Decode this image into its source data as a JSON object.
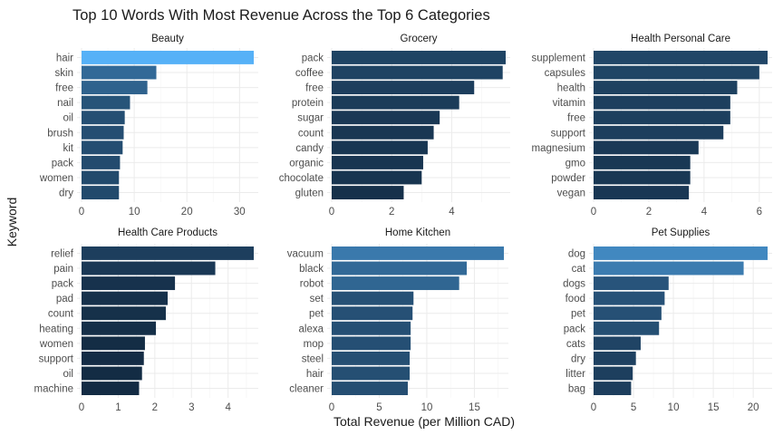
{
  "chart_data": {
    "type": "bar",
    "orientation": "horizontal",
    "title": "Top 10 Words With Most Revenue Across the Top 6 Categories",
    "xlabel": "Total Revenue (per Million CAD)",
    "ylabel": "Keyword",
    "grid": true,
    "legend": "none",
    "color_scale": [
      "#132b43",
      "#56b1f7"
    ],
    "facets": [
      {
        "title": "Beauty",
        "categories": [
          "hair",
          "skin",
          "free",
          "nail",
          "oil",
          "brush",
          "kit",
          "pack",
          "women",
          "dry"
        ],
        "values": [
          32.7,
          14.2,
          12.5,
          9.2,
          8.2,
          8.0,
          7.8,
          7.3,
          7.1,
          7.1
        ],
        "xlim": [
          0,
          32.7
        ],
        "ticks": [
          0,
          10,
          20,
          30
        ]
      },
      {
        "title": "Grocery",
        "categories": [
          "pack",
          "coffee",
          "free",
          "protein",
          "sugar",
          "count",
          "candy",
          "organic",
          "chocolate",
          "gluten"
        ],
        "values": [
          5.8,
          5.7,
          4.75,
          4.25,
          3.6,
          3.4,
          3.2,
          3.05,
          3.0,
          2.4
        ],
        "xlim": [
          0,
          5.8
        ],
        "ticks": [
          0,
          2,
          4,
          6
        ]
      },
      {
        "title": "Health  Personal Care",
        "categories": [
          "supplement",
          "capsules",
          "health",
          "vitamin",
          "free",
          "support",
          "magnesium",
          "gmo",
          "powder",
          "vegan"
        ],
        "values": [
          6.3,
          6.0,
          5.2,
          4.95,
          4.95,
          4.7,
          3.8,
          3.5,
          3.5,
          3.45
        ],
        "xlim": [
          0,
          6.3
        ],
        "ticks": [
          0,
          2,
          4,
          6
        ]
      },
      {
        "title": "Health Care Products",
        "categories": [
          "relief",
          "pain",
          "pack",
          "pad",
          "count",
          "heating",
          "women",
          "support",
          "oil",
          "machine"
        ],
        "values": [
          4.7,
          3.65,
          2.55,
          2.35,
          2.3,
          2.03,
          1.73,
          1.7,
          1.65,
          1.57
        ],
        "xlim": [
          0,
          4.7
        ],
        "ticks": [
          0,
          1,
          2,
          3,
          4
        ]
      },
      {
        "title": "Home  Kitchen",
        "categories": [
          "vacuum",
          "black",
          "robot",
          "set",
          "pet",
          "alexa",
          "mop",
          "steel",
          "hair",
          "cleaner"
        ],
        "values": [
          18.1,
          14.2,
          13.4,
          8.6,
          8.5,
          8.3,
          8.3,
          8.2,
          8.2,
          8.0
        ],
        "xlim": [
          0,
          18.1
        ],
        "ticks": [
          0,
          5,
          10,
          15
        ]
      },
      {
        "title": "Pet Supplies",
        "categories": [
          "dog",
          "cat",
          "dogs",
          "food",
          "pet",
          "pack",
          "cats",
          "dry",
          "litter",
          "bag"
        ],
        "values": [
          21.8,
          18.8,
          9.4,
          8.9,
          8.5,
          8.2,
          5.9,
          5.3,
          4.9,
          4.7
        ],
        "xlim": [
          0,
          21.8
        ],
        "ticks": [
          0,
          5,
          10,
          15,
          20
        ]
      }
    ]
  }
}
